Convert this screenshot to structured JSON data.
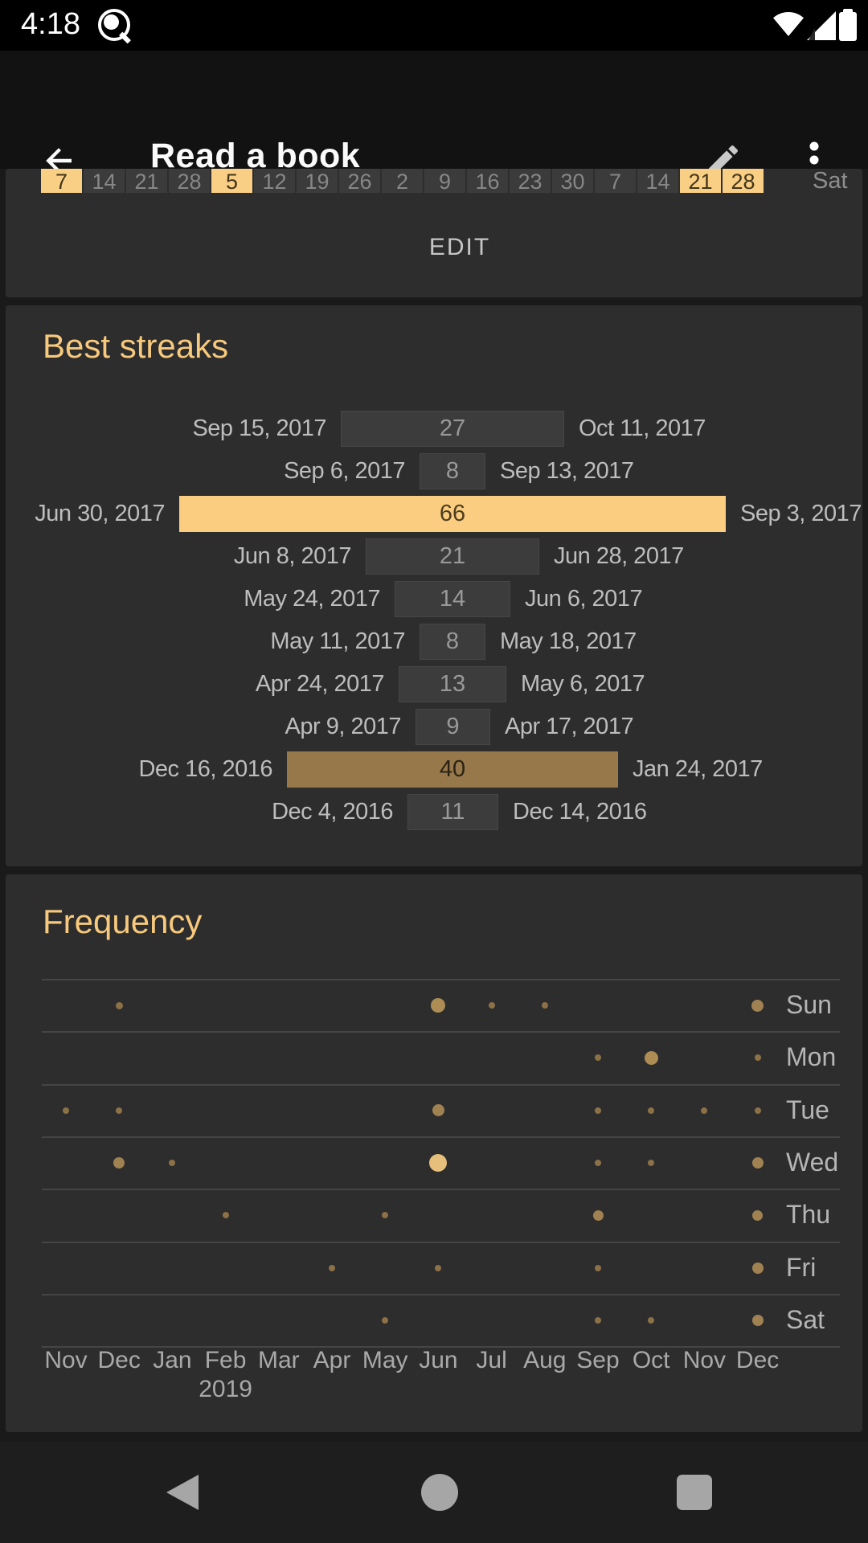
{
  "status_bar": {
    "time": "4:18"
  },
  "app_bar": {
    "title": "Read a book"
  },
  "calendar_strip": {
    "day_label": "Sat",
    "edit_label": "EDIT",
    "cells": [
      {
        "num": "7",
        "checked": true
      },
      {
        "num": "14",
        "checked": false
      },
      {
        "num": "21",
        "checked": false
      },
      {
        "num": "28",
        "checked": false
      },
      {
        "num": "5",
        "checked": true
      },
      {
        "num": "12",
        "checked": false
      },
      {
        "num": "19",
        "checked": false
      },
      {
        "num": "26",
        "checked": false
      },
      {
        "num": "2",
        "checked": false
      },
      {
        "num": "9",
        "checked": false
      },
      {
        "num": "16",
        "checked": false
      },
      {
        "num": "23",
        "checked": false
      },
      {
        "num": "30",
        "checked": false
      },
      {
        "num": "7",
        "checked": false
      },
      {
        "num": "14",
        "checked": false
      },
      {
        "num": "21",
        "checked": true
      },
      {
        "num": "28",
        "checked": true
      }
    ]
  },
  "best_streaks": {
    "title": "Best streaks",
    "rows": [
      {
        "start": "Sep 15, 2017",
        "value": 27,
        "end": "Oct 11, 2017",
        "style": "gray"
      },
      {
        "start": "Sep 6, 2017",
        "value": 8,
        "end": "Sep 13, 2017",
        "style": "gray"
      },
      {
        "start": "Jun 30, 2017",
        "value": 66,
        "end": "Sep 3, 2017",
        "style": "yellow"
      },
      {
        "start": "Jun 8, 2017",
        "value": 21,
        "end": "Jun 28, 2017",
        "style": "gray"
      },
      {
        "start": "May 24, 2017",
        "value": 14,
        "end": "Jun 6, 2017",
        "style": "gray"
      },
      {
        "start": "May 11, 2017",
        "value": 8,
        "end": "May 18, 2017",
        "style": "gray"
      },
      {
        "start": "Apr 24, 2017",
        "value": 13,
        "end": "May 6, 2017",
        "style": "gray"
      },
      {
        "start": "Apr 9, 2017",
        "value": 9,
        "end": "Apr 17, 2017",
        "style": "gray"
      },
      {
        "start": "Dec 16, 2016",
        "value": 40,
        "end": "Jan 24, 2017",
        "style": "brown"
      },
      {
        "start": "Dec 4, 2016",
        "value": 11,
        "end": "Dec 14, 2016",
        "style": "gray"
      }
    ]
  },
  "frequency": {
    "title": "Frequency",
    "days": [
      "Sun",
      "Mon",
      "Tue",
      "Wed",
      "Thu",
      "Fri",
      "Sat"
    ],
    "months": [
      "Nov",
      "Dec",
      "Jan",
      "Feb",
      "Mar",
      "Apr",
      "May",
      "Jun",
      "Jul",
      "Aug",
      "Sep",
      "Oct",
      "Nov",
      "Dec"
    ],
    "year_label": "2019",
    "year_month_index": 3,
    "dots": [
      {
        "day": 0,
        "month": 1,
        "size": 9
      },
      {
        "day": 0,
        "month": 7,
        "size": 18
      },
      {
        "day": 0,
        "month": 8,
        "size": 8
      },
      {
        "day": 0,
        "month": 9,
        "size": 8
      },
      {
        "day": 0,
        "month": 13,
        "size": 15
      },
      {
        "day": 1,
        "month": 10,
        "size": 8
      },
      {
        "day": 1,
        "month": 11,
        "size": 17
      },
      {
        "day": 1,
        "month": 13,
        "size": 8
      },
      {
        "day": 2,
        "month": 0,
        "size": 8
      },
      {
        "day": 2,
        "month": 1,
        "size": 8
      },
      {
        "day": 2,
        "month": 7,
        "size": 15
      },
      {
        "day": 2,
        "month": 10,
        "size": 8
      },
      {
        "day": 2,
        "month": 11,
        "size": 8
      },
      {
        "day": 2,
        "month": 12,
        "size": 8
      },
      {
        "day": 2,
        "month": 13,
        "size": 8
      },
      {
        "day": 3,
        "month": 1,
        "size": 14
      },
      {
        "day": 3,
        "month": 2,
        "size": 8
      },
      {
        "day": 3,
        "month": 7,
        "size": 22
      },
      {
        "day": 3,
        "month": 10,
        "size": 8
      },
      {
        "day": 3,
        "month": 11,
        "size": 8
      },
      {
        "day": 3,
        "month": 13,
        "size": 14
      },
      {
        "day": 4,
        "month": 3,
        "size": 8
      },
      {
        "day": 4,
        "month": 6,
        "size": 8
      },
      {
        "day": 4,
        "month": 10,
        "size": 13
      },
      {
        "day": 4,
        "month": 13,
        "size": 13
      },
      {
        "day": 5,
        "month": 5,
        "size": 8
      },
      {
        "day": 5,
        "month": 7,
        "size": 8
      },
      {
        "day": 5,
        "month": 10,
        "size": 8
      },
      {
        "day": 5,
        "month": 13,
        "size": 14
      },
      {
        "day": 6,
        "month": 6,
        "size": 8
      },
      {
        "day": 6,
        "month": 10,
        "size": 8
      },
      {
        "day": 6,
        "month": 11,
        "size": 8
      },
      {
        "day": 6,
        "month": 13,
        "size": 14
      }
    ]
  },
  "colors": {
    "accent": "#f7c97c",
    "streak_highlight": "#facd80",
    "streak_old_highlight": "#96784a",
    "streak_gray": "#3c3c3c",
    "dot_small": "#8c7147",
    "dot_medium": "#a08252",
    "dot_large": "#ae8d55",
    "dot_max": "#e6c07a"
  }
}
